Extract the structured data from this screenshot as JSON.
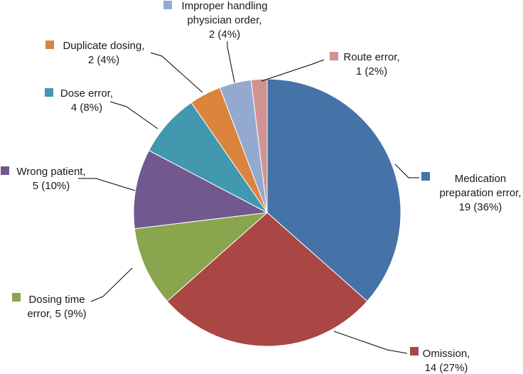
{
  "chart_data": {
    "type": "pie",
    "title": "",
    "start_angle_deg": 0,
    "direction": "clockwise",
    "slices": [
      {
        "category": "Medication preparation error",
        "value": 19,
        "percent": 36,
        "color": "#4572A7",
        "label_lines": [
          "Medication",
          "preparation error,",
          "19 (36%)"
        ],
        "label_align": "center"
      },
      {
        "category": "Omission",
        "value": 14,
        "percent": 27,
        "color": "#AA4643",
        "label_lines": [
          "Omission,",
          "14 (27%)"
        ],
        "label_align": "center"
      },
      {
        "category": "Dosing time error",
        "value": 5,
        "percent": 9,
        "color": "#89A54E",
        "label_lines": [
          "Dosing time",
          "error, 5 (9%)"
        ],
        "label_align": "center"
      },
      {
        "category": "Wrong patient",
        "value": 5,
        "percent": 10,
        "color": "#71588F",
        "label_lines": [
          "Wrong patient,",
          "5 (10%)"
        ],
        "label_align": "center"
      },
      {
        "category": "Dose error",
        "value": 4,
        "percent": 8,
        "color": "#4198AF",
        "label_lines": [
          "Dose error,",
          "4 (8%)"
        ],
        "label_align": "center"
      },
      {
        "category": "Duplicate dosing",
        "value": 2,
        "percent": 4,
        "color": "#DB843D",
        "label_lines": [
          "Duplicate dosing,",
          "2 (4%)"
        ],
        "label_align": "center"
      },
      {
        "category": "Improper handling physician order",
        "value": 2,
        "percent": 4,
        "color": "#93A9CF",
        "label_lines": [
          "Improper handling",
          "physician order,",
          "2 (4%)"
        ],
        "label_align": "center"
      },
      {
        "category": "Route error",
        "value": 1,
        "percent": 2,
        "color": "#D19392",
        "label_lines": [
          "Route error,",
          "1 (2%)"
        ],
        "label_align": "center"
      }
    ]
  }
}
